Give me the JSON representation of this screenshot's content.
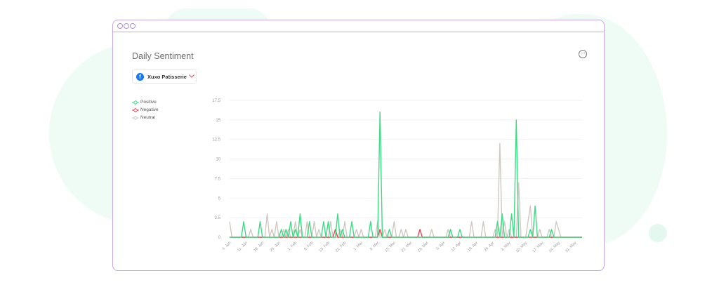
{
  "window": {
    "title": "Daily Sentiment"
  },
  "page_selector": {
    "icon": "facebook-icon",
    "label": "Xuxo Patisserie"
  },
  "menu": {
    "icon": "more-options-icon"
  },
  "colors": {
    "positive": "#3ddc84",
    "negative": "#e8464e",
    "neutral": "#cfc9c1",
    "window_border": "#c6a6e3",
    "accent": "#1877f2"
  },
  "chart_data": {
    "type": "line",
    "title": "Daily Sentiment",
    "ylim": [
      0,
      17.5
    ],
    "y_ticks": [
      "0",
      "2.5",
      "5",
      "7.5",
      "10",
      "12.5",
      "15",
      "17.5"
    ],
    "x_tick_labels": [
      "4. Jan",
      "11. Jan",
      "18. Jan",
      "25. Jan",
      "1. Feb",
      "8. Feb",
      "15. Feb",
      "22. Feb",
      "1. Mar",
      "8. Mar",
      "15. Mar",
      "22. Mar",
      "29. Mar",
      "5. Apr",
      "12. Apr",
      "19. Apr",
      "26. Apr",
      "3. May",
      "10. May",
      "17. May",
      "24. May",
      "31. May"
    ],
    "x_start": "4. Jan",
    "days": 151,
    "grid": true,
    "legend": "top-left",
    "series": [
      {
        "name": "Positive",
        "points": [
          [
            6,
            2
          ],
          [
            13,
            2
          ],
          [
            22,
            1
          ],
          [
            24,
            1
          ],
          [
            26,
            2
          ],
          [
            28,
            1
          ],
          [
            30,
            3
          ],
          [
            34,
            2
          ],
          [
            40,
            2
          ],
          [
            42,
            2
          ],
          [
            46,
            3
          ],
          [
            48,
            1
          ],
          [
            52,
            2
          ],
          [
            60,
            2
          ],
          [
            64,
            16
          ],
          [
            68,
            1
          ],
          [
            94,
            1
          ],
          [
            98,
            1
          ],
          [
            114,
            2
          ],
          [
            116,
            3
          ],
          [
            120,
            3
          ],
          [
            122,
            15
          ],
          [
            128,
            1
          ],
          [
            130,
            4
          ],
          [
            137,
            1
          ]
        ]
      },
      {
        "name": "Negative",
        "points": [
          [
            45,
            1
          ],
          [
            64,
            1
          ],
          [
            81,
            1
          ]
        ]
      },
      {
        "name": "Neutral",
        "points": [
          [
            0,
            2
          ],
          [
            9,
            1
          ],
          [
            16,
            3
          ],
          [
            18,
            1
          ],
          [
            20,
            2
          ],
          [
            23,
            1
          ],
          [
            25,
            1
          ],
          [
            28,
            2
          ],
          [
            30,
            1
          ],
          [
            33,
            2
          ],
          [
            36,
            2
          ],
          [
            38,
            1
          ],
          [
            43,
            2
          ],
          [
            47,
            1
          ],
          [
            49,
            2
          ],
          [
            54,
            1
          ],
          [
            56,
            1
          ],
          [
            63,
            2
          ],
          [
            66,
            1
          ],
          [
            70,
            2
          ],
          [
            73,
            1
          ],
          [
            75,
            1
          ],
          [
            86,
            1
          ],
          [
            93,
            1
          ],
          [
            103,
            2
          ],
          [
            108,
            2
          ],
          [
            113,
            1
          ],
          [
            115,
            12
          ],
          [
            117,
            2
          ],
          [
            119,
            1
          ],
          [
            123,
            7
          ],
          [
            127,
            2
          ],
          [
            128,
            4
          ],
          [
            132,
            1
          ],
          [
            136,
            1
          ],
          [
            139,
            2
          ],
          [
            140,
            1
          ]
        ]
      }
    ]
  }
}
